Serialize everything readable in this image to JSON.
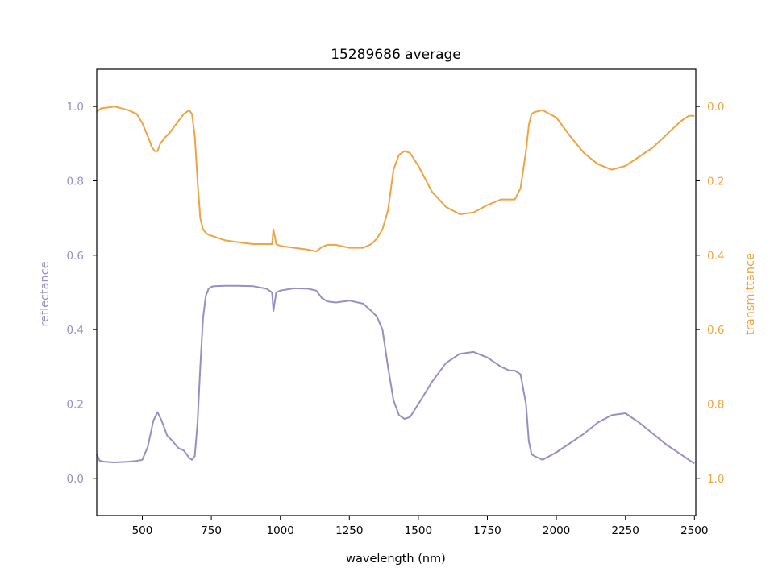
{
  "chart_data": {
    "type": "line",
    "title": "15289686 average",
    "xlabel": "wavelength (nm)",
    "ylabel_left": "reflectance",
    "ylabel_right": "transmittance",
    "xlim": [
      335,
      2505
    ],
    "ylim_left": [
      -0.1,
      1.1
    ],
    "ylim_right_inverted": [
      1.1,
      -0.1
    ],
    "x_ticks": [
      500,
      750,
      1000,
      1250,
      1500,
      1750,
      2000,
      2250,
      2500
    ],
    "y_ticks_left": [
      0.0,
      0.2,
      0.4,
      0.6,
      0.8,
      1.0
    ],
    "y_ticks_right": [
      0.0,
      0.2,
      0.4,
      0.6,
      0.8,
      1.0
    ],
    "x_tick_labels": [
      "500",
      "750",
      "1000",
      "1250",
      "1500",
      "1750",
      "2000",
      "2250",
      "2500"
    ],
    "y_tick_labels_left": [
      "0.0",
      "0.2",
      "0.4",
      "0.6",
      "0.8",
      "1.0"
    ],
    "y_tick_labels_right": [
      "0.0",
      "0.2",
      "0.4",
      "0.6",
      "0.8",
      "1.0"
    ],
    "grid": false,
    "legend": "none",
    "colors": {
      "reflectance": "#9590c4",
      "transmittance": "#eda443"
    },
    "series": [
      {
        "axis": "left",
        "x": [
          335,
          345,
          360,
          400,
          450,
          480,
          500,
          520,
          540,
          555,
          570,
          590,
          610,
          630,
          650,
          670,
          680,
          690,
          700,
          710,
          720,
          730,
          740,
          750,
          760,
          800,
          850,
          900,
          950,
          970,
          975,
          985,
          1000,
          1050,
          1100,
          1130,
          1150,
          1170,
          1200,
          1250,
          1300,
          1330,
          1350,
          1370,
          1390,
          1410,
          1430,
          1450,
          1470,
          1500,
          1550,
          1600,
          1650,
          1700,
          1750,
          1800,
          1830,
          1850,
          1870,
          1890,
          1900,
          1910,
          1920,
          1950,
          2000,
          2050,
          2100,
          2150,
          2200,
          2250,
          2300,
          2350,
          2400,
          2450,
          2480,
          2500
        ],
        "values": [
          0.065,
          0.048,
          0.045,
          0.043,
          0.045,
          0.047,
          0.05,
          0.085,
          0.155,
          0.178,
          0.155,
          0.115,
          0.1,
          0.082,
          0.075,
          0.055,
          0.05,
          0.06,
          0.15,
          0.3,
          0.43,
          0.49,
          0.51,
          0.515,
          0.517,
          0.518,
          0.518,
          0.517,
          0.51,
          0.5,
          0.45,
          0.5,
          0.505,
          0.511,
          0.51,
          0.505,
          0.485,
          0.476,
          0.473,
          0.478,
          0.47,
          0.45,
          0.435,
          0.4,
          0.3,
          0.21,
          0.17,
          0.16,
          0.165,
          0.2,
          0.26,
          0.31,
          0.335,
          0.34,
          0.325,
          0.3,
          0.29,
          0.29,
          0.28,
          0.2,
          0.1,
          0.065,
          0.06,
          0.05,
          0.07,
          0.095,
          0.12,
          0.15,
          0.17,
          0.175,
          0.15,
          0.12,
          0.09,
          0.065,
          0.05,
          0.04
        ]
      },
      {
        "axis": "right",
        "x": [
          335,
          350,
          400,
          450,
          480,
          500,
          520,
          535,
          545,
          555,
          565,
          580,
          600,
          630,
          650,
          670,
          680,
          690,
          700,
          710,
          720,
          730,
          740,
          760,
          800,
          850,
          900,
          950,
          970,
          975,
          985,
          1000,
          1050,
          1100,
          1130,
          1150,
          1170,
          1200,
          1250,
          1300,
          1330,
          1350,
          1370,
          1390,
          1410,
          1430,
          1450,
          1470,
          1500,
          1550,
          1600,
          1650,
          1700,
          1750,
          1800,
          1830,
          1850,
          1870,
          1890,
          1900,
          1910,
          1920,
          1950,
          2000,
          2050,
          2100,
          2150,
          2200,
          2250,
          2300,
          2350,
          2400,
          2450,
          2480,
          2500
        ],
        "values": [
          0.015,
          0.005,
          0.0,
          0.01,
          0.02,
          0.045,
          0.08,
          0.11,
          0.12,
          0.12,
          0.1,
          0.085,
          0.07,
          0.04,
          0.02,
          0.01,
          0.02,
          0.08,
          0.2,
          0.3,
          0.33,
          0.34,
          0.345,
          0.35,
          0.36,
          0.365,
          0.37,
          0.37,
          0.37,
          0.33,
          0.37,
          0.375,
          0.38,
          0.385,
          0.39,
          0.378,
          0.372,
          0.372,
          0.38,
          0.38,
          0.37,
          0.355,
          0.33,
          0.28,
          0.17,
          0.13,
          0.12,
          0.125,
          0.16,
          0.23,
          0.27,
          0.29,
          0.285,
          0.265,
          0.25,
          0.25,
          0.25,
          0.22,
          0.12,
          0.05,
          0.02,
          0.015,
          0.01,
          0.03,
          0.08,
          0.125,
          0.155,
          0.17,
          0.16,
          0.135,
          0.11,
          0.075,
          0.04,
          0.025,
          0.025
        ]
      }
    ]
  }
}
